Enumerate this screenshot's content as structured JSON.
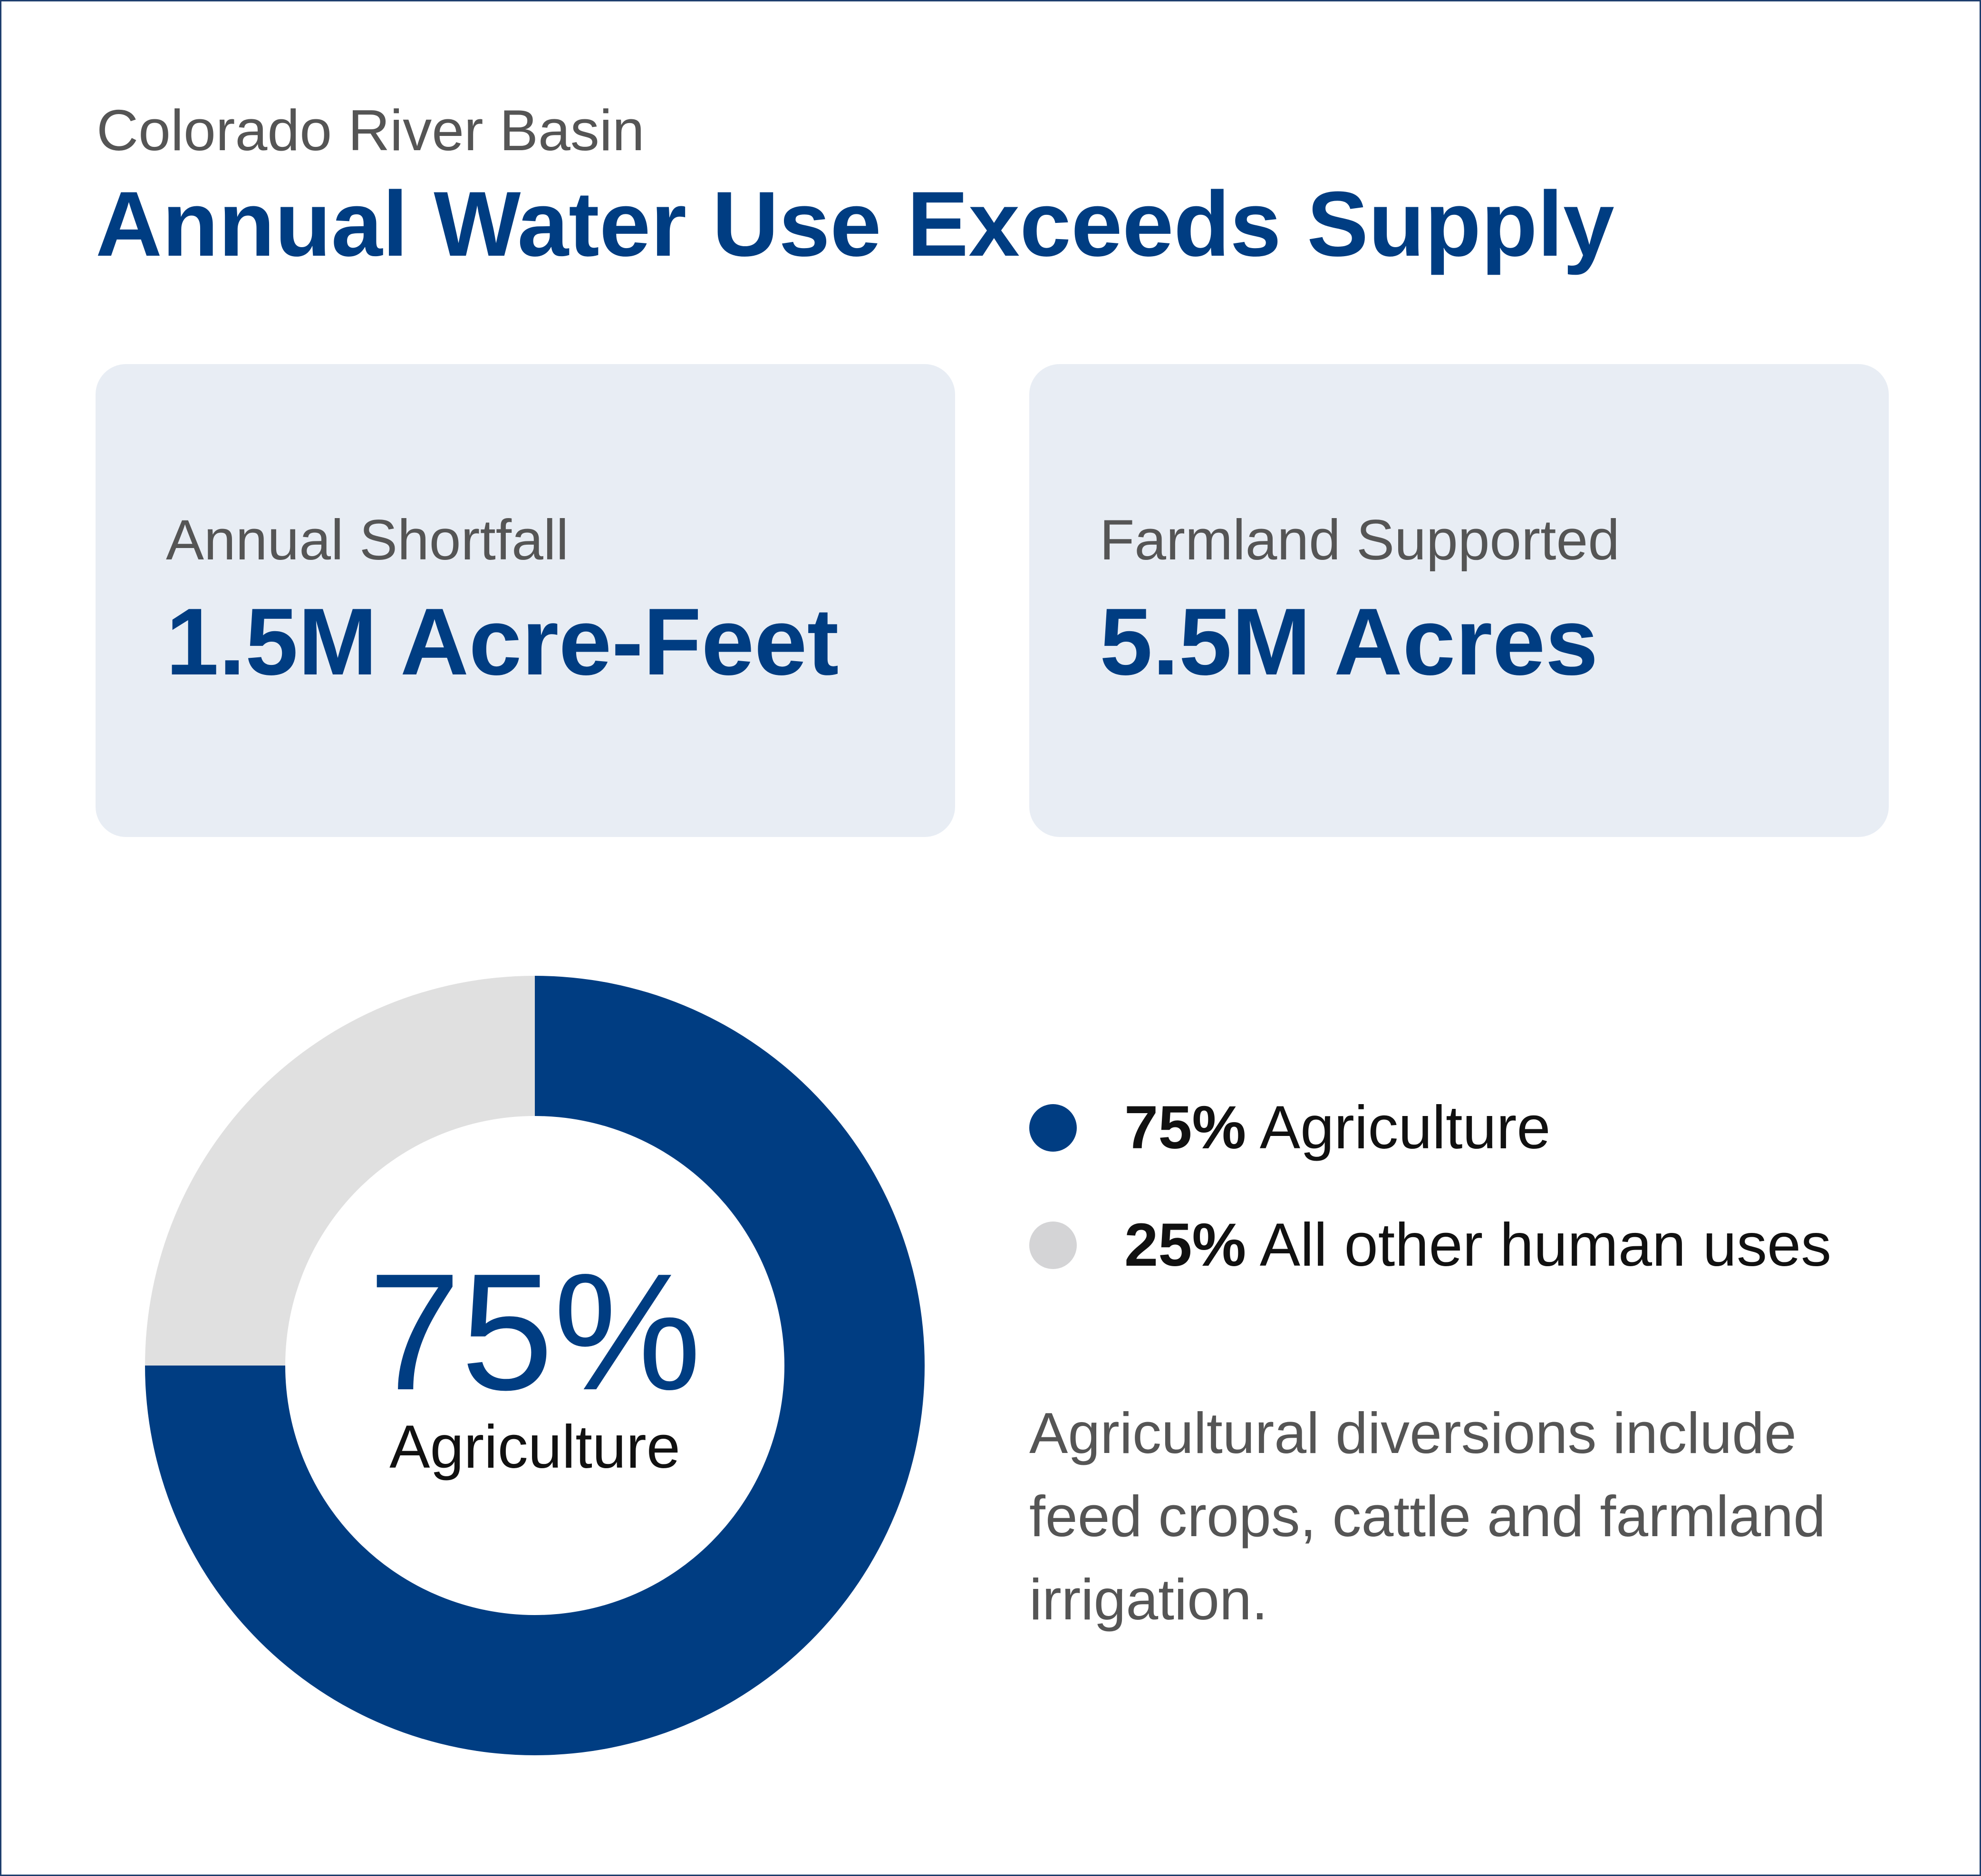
{
  "header": {
    "subtitle": "Colorado River Basin",
    "title": "Annual Water Use Exceeds Supply"
  },
  "stats": [
    {
      "label": "Annual Shortfall",
      "value": "1.5M Acre-Feet"
    },
    {
      "label": "Farmland Supported",
      "value": "5.5M Acres"
    }
  ],
  "chart_data": {
    "type": "pie",
    "variant": "donut",
    "categories": [
      "Agriculture",
      "All other human uses"
    ],
    "values": [
      75,
      25
    ],
    "value_labels": [
      "75%",
      "25%"
    ],
    "colors": [
      "#003d82",
      "#e0e0e0"
    ],
    "legend_colors": [
      "#003d82",
      "#d4d4d6"
    ],
    "center_value": "75%",
    "center_label": "Agriculture",
    "legend_position": "right"
  },
  "legend": [
    {
      "pct": "75%",
      "label": "Agriculture"
    },
    {
      "pct": "25%",
      "label": "All other human uses"
    }
  ],
  "note": "Agricultural diversions include feed crops, cattle and farmland irrigation."
}
